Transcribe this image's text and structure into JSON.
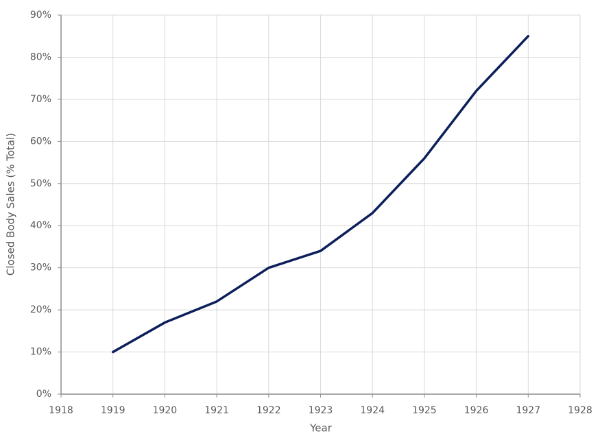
{
  "chart_data": {
    "type": "line",
    "x_label": "Year",
    "y_label": "Closed Body Sales (% Total)",
    "x": [
      1919,
      1920,
      1921,
      1922,
      1923,
      1924,
      1925,
      1926,
      1927
    ],
    "series": [
      {
        "color": "#0c1f5b",
        "values": [
          10,
          17,
          22,
          30,
          34,
          43,
          56,
          72,
          85
        ]
      }
    ],
    "xlim": [
      1918,
      1928
    ],
    "xticks": [
      1918,
      1919,
      1920,
      1921,
      1922,
      1923,
      1924,
      1925,
      1926,
      1927,
      1928
    ],
    "ylim": [
      0,
      90
    ],
    "yticks": [
      {
        "value": 0,
        "label": "0%"
      },
      {
        "value": 10,
        "label": "10%"
      },
      {
        "value": 20,
        "label": "20%"
      },
      {
        "value": 30,
        "label": "30%"
      },
      {
        "value": 40,
        "label": "40%"
      },
      {
        "value": 50,
        "label": "50%"
      },
      {
        "value": 60,
        "label": "60%"
      },
      {
        "value": 70,
        "label": "70%"
      },
      {
        "value": 80,
        "label": "80%"
      },
      {
        "value": 90,
        "label": "90%"
      }
    ],
    "grid": true
  }
}
